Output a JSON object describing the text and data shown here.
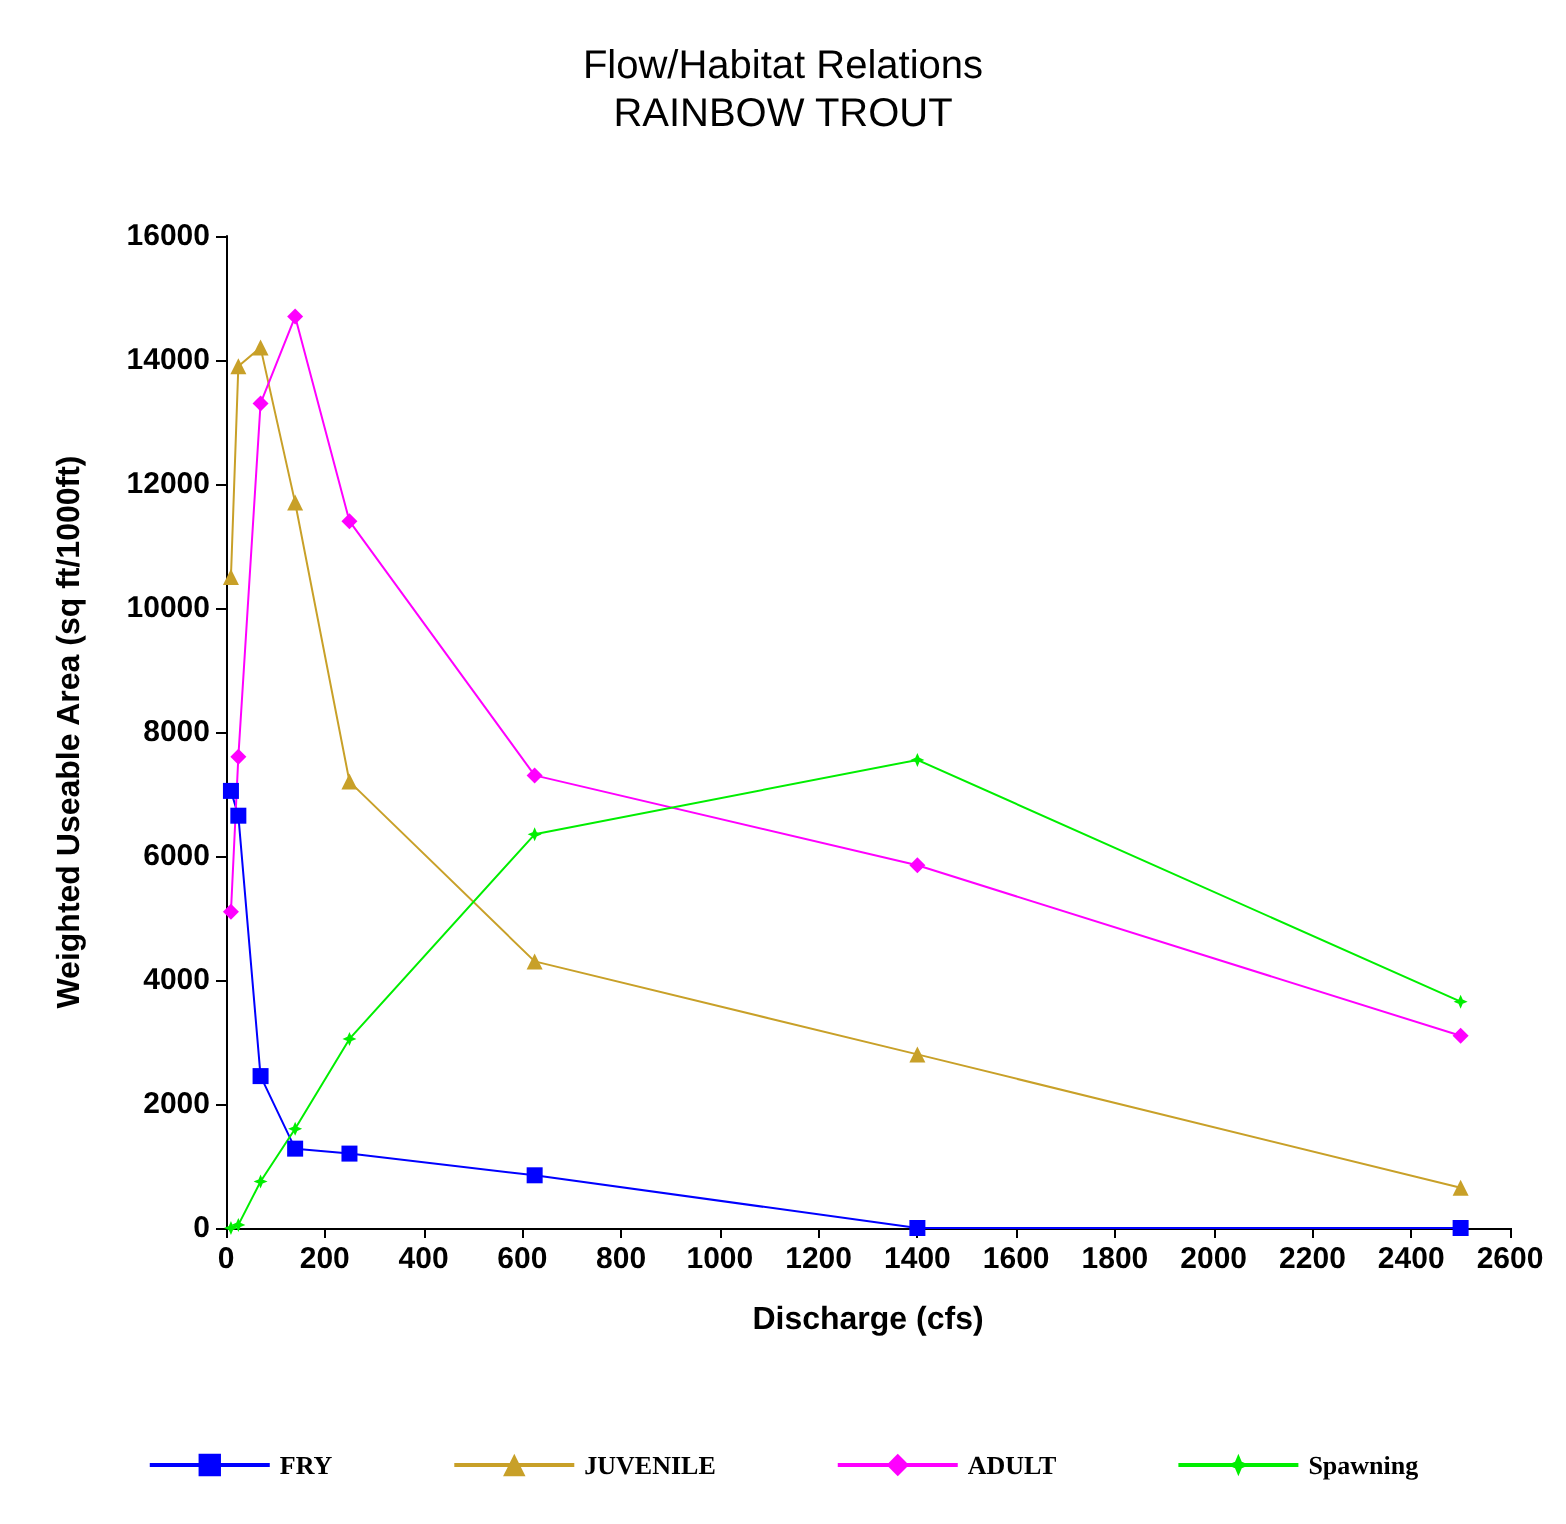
{
  "chart_data": {
    "type": "line",
    "title": "Flow/Habitat Relations",
    "subtitle": "RAINBOW TROUT",
    "xlabel": "Discharge (cfs)",
    "ylabel": "Weighted Useable Area (sq ft/1000ft)",
    "x": [
      10,
      25,
      70,
      140,
      250,
      625,
      1400,
      2500
    ],
    "series": [
      {
        "name": "FRY",
        "color": "#0000ff",
        "marker": "square",
        "values": [
          7050,
          6650,
          2450,
          1280,
          1200,
          850,
          0,
          0
        ]
      },
      {
        "name": "JUVENILE",
        "color": "#c8a028",
        "marker": "triangle",
        "values": [
          10500,
          13900,
          14200,
          11700,
          7200,
          4300,
          2800,
          650
        ]
      },
      {
        "name": "ADULT",
        "color": "#ff00ff",
        "marker": "diamond",
        "values": [
          5100,
          7600,
          13300,
          14700,
          11400,
          7300,
          5850,
          3100
        ]
      },
      {
        "name": "Spawning",
        "color": "#00ee00",
        "marker": "star",
        "values": [
          0,
          50,
          750,
          1600,
          3050,
          6350,
          7550,
          3650
        ]
      }
    ],
    "xlim": [
      0,
      2600
    ],
    "xticks": [
      0,
      200,
      400,
      600,
      800,
      1000,
      1200,
      1400,
      1600,
      1800,
      2000,
      2200,
      2400,
      2600
    ],
    "ylim": [
      0,
      16000
    ],
    "yticks": [
      0,
      2000,
      4000,
      6000,
      8000,
      10000,
      12000,
      14000,
      16000
    ],
    "grid": false,
    "legend": "bottom",
    "line_style": "solid"
  }
}
